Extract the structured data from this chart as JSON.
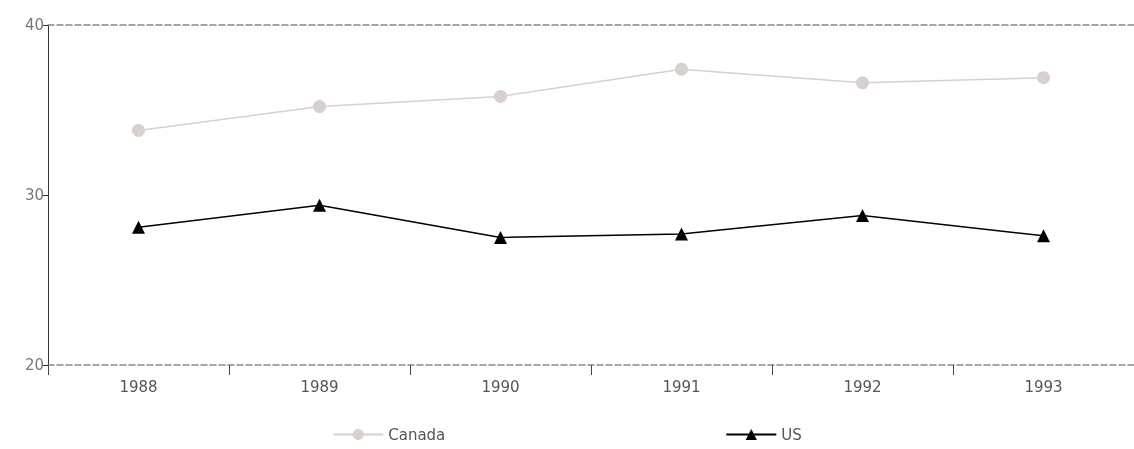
{
  "chart_data": {
    "type": "line",
    "categories": [
      "1988",
      "1989",
      "1990",
      "1991",
      "1992",
      "1993"
    ],
    "series": [
      {
        "name": "Canada",
        "color": "#d8d0cc",
        "marker": "circle",
        "values": [
          33.8,
          35.2,
          35.8,
          37.4,
          36.6,
          36.9
        ]
      },
      {
        "name": "US",
        "color": "#000000",
        "marker": "triangle",
        "values": [
          28.1,
          29.4,
          27.5,
          27.7,
          28.8,
          27.6
        ]
      }
    ],
    "ylim": [
      20,
      40
    ],
    "yticks": [
      20,
      30,
      40
    ],
    "grid": false,
    "legend": "bottom"
  }
}
